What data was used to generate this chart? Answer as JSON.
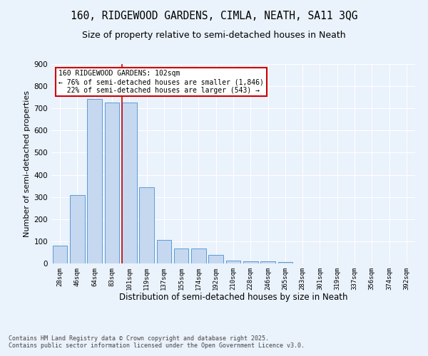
{
  "title": "160, RIDGEWOOD GARDENS, CIMLA, NEATH, SA11 3QG",
  "subtitle": "Size of property relative to semi-detached houses in Neath",
  "xlabel": "Distribution of semi-detached houses by size in Neath",
  "ylabel": "Number of semi-detached properties",
  "categories": [
    "28sqm",
    "46sqm",
    "64sqm",
    "83sqm",
    "101sqm",
    "119sqm",
    "137sqm",
    "155sqm",
    "174sqm",
    "192sqm",
    "210sqm",
    "228sqm",
    "246sqm",
    "265sqm",
    "283sqm",
    "301sqm",
    "319sqm",
    "337sqm",
    "356sqm",
    "374sqm",
    "392sqm"
  ],
  "values": [
    80,
    308,
    742,
    728,
    728,
    343,
    107,
    68,
    68,
    37,
    13,
    11,
    11,
    8,
    0,
    0,
    0,
    0,
    0,
    0,
    0
  ],
  "bar_color": "#c5d8f0",
  "bar_edge_color": "#5b9bd5",
  "annotation_text": "160 RIDGEWOOD GARDENS: 102sqm\n← 76% of semi-detached houses are smaller (1,846)\n  22% of semi-detached houses are larger (543) →",
  "annotation_box_color": "#ffffff",
  "annotation_box_edge_color": "#cc0000",
  "ylim": [
    0,
    900
  ],
  "yticks": [
    0,
    100,
    200,
    300,
    400,
    500,
    600,
    700,
    800,
    900
  ],
  "title_fontsize": 10.5,
  "subtitle_fontsize": 9,
  "footer_text": "Contains HM Land Registry data © Crown copyright and database right 2025.\nContains public sector information licensed under the Open Government Licence v3.0.",
  "background_color": "#eaf2fb",
  "grid_color": "#ffffff",
  "red_line_color": "#cc0000"
}
